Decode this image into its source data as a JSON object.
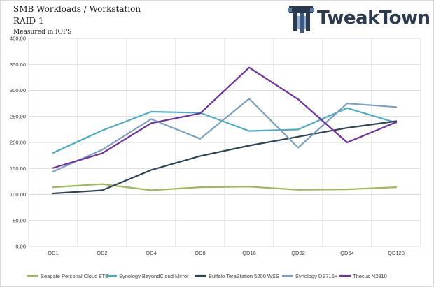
{
  "header": {
    "title_line1": "SMB Workloads / Workstation",
    "title_line2": "RAID 1",
    "subtitle": "Measured in IOPS"
  },
  "logo": {
    "text": "TweakTown",
    "color": "#2b3a4e",
    "icon": "tweaktown-logo-icon"
  },
  "chart_data": {
    "type": "line",
    "title": "SMB Workloads / Workstation",
    "xlabel": "",
    "ylabel": "Measured in IOPS",
    "categories": [
      "QD1",
      "QD2",
      "QD4",
      "QD8",
      "QD16",
      "QD32",
      "QD64",
      "QD128"
    ],
    "ylim": [
      0,
      400
    ],
    "yticks": [
      "0.00",
      "50.00",
      "100.00",
      "150.00",
      "200.00",
      "250.00",
      "300.00",
      "350.00",
      "400.00"
    ],
    "grid": true,
    "legend_position": "bottom",
    "series": [
      {
        "name": "Seagate Personal Cloud 8TB",
        "color": "#9bbb59",
        "values": [
          114,
          120,
          108,
          114,
          115,
          109,
          110,
          114
        ]
      },
      {
        "name": "Synology BeyondCloud Mirror",
        "color": "#4bacc6",
        "values": [
          180,
          223,
          259,
          257,
          222,
          225,
          266,
          238
        ]
      },
      {
        "name": "Buffalo TeraStation 5200 WSS",
        "color": "#2c4457",
        "values": [
          102,
          108,
          147,
          174,
          194,
          211,
          228,
          241
        ]
      },
      {
        "name": "Synology DS716+",
        "color": "#7ba0c8",
        "values": [
          144,
          186,
          245,
          207,
          284,
          190,
          275,
          268
        ]
      },
      {
        "name": "Thecus N2810",
        "color": "#7030a0",
        "values": [
          151,
          179,
          237,
          256,
          344,
          283,
          200,
          239
        ]
      }
    ]
  }
}
